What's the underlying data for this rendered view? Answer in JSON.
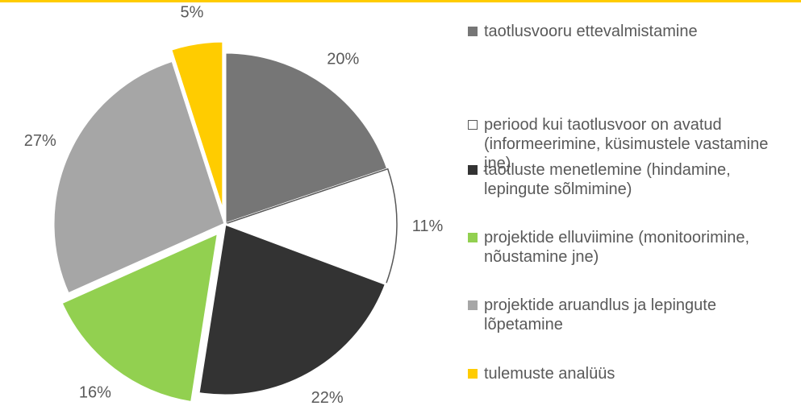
{
  "chart_data": {
    "type": "pie",
    "categories": [
      "taotlusvooru ettevalmistamine",
      "periood kui taotlusvoor on avatud (informeerimine, küsimustele vastamine jne)",
      "taotluste menetlemine (hindamine, lepingute sõlmimine)",
      "projektide elluviimine (monitoorimine, nõustamine jne)",
      "projektide aruandlus ja lepingute lõpetamine",
      "tulemuste analüüs"
    ],
    "values": [
      20,
      11,
      22,
      16,
      27,
      5
    ],
    "value_labels": [
      "20%",
      "11%",
      "22%",
      "16%",
      "27%",
      "5%"
    ],
    "colors": [
      "#767676",
      "#ffffff",
      "#333333",
      "#92d050",
      "#a6a6a6",
      "#ffcc00"
    ],
    "exploded": [
      false,
      false,
      false,
      true,
      false,
      true
    ]
  }
}
